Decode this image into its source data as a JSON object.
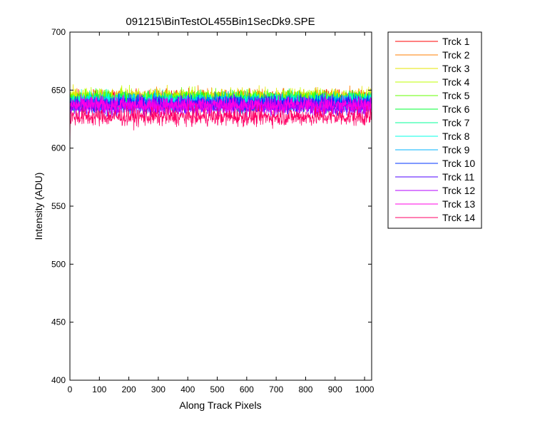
{
  "chart_data": {
    "type": "line",
    "title": "091215\\BinTestOL455Bin1SecDk9.SPE",
    "xlabel": "Along Track Pixels",
    "ylabel": "Intensity (ADU)",
    "xlim": [
      0,
      1024
    ],
    "ylim": [
      400,
      700
    ],
    "x_ticks": [
      "0",
      "100",
      "200",
      "300",
      "400",
      "500",
      "600",
      "700",
      "800",
      "900",
      "1000"
    ],
    "y_ticks": [
      "400",
      "450",
      "500",
      "550",
      "600",
      "650",
      "700"
    ],
    "grid": false,
    "legend_position": "outside-right",
    "x_points": 1024,
    "series": [
      {
        "name": "Trck 1",
        "color": "#ff0000",
        "mean": 642,
        "noise": 7,
        "start": 600
      },
      {
        "name": "Trck 2",
        "color": "#ff7f00",
        "mean": 643,
        "noise": 7,
        "start": 610
      },
      {
        "name": "Trck 3",
        "color": "#e6e600",
        "mean": 644,
        "noise": 7,
        "start": 612
      },
      {
        "name": "Trck 4",
        "color": "#bfff00",
        "mean": 643,
        "noise": 7,
        "start": 614
      },
      {
        "name": "Trck 5",
        "color": "#66ff00",
        "mean": 642,
        "noise": 7,
        "start": 616
      },
      {
        "name": "Trck 6",
        "color": "#00ff33",
        "mean": 641,
        "noise": 7,
        "start": 616
      },
      {
        "name": "Trck 7",
        "color": "#00ff99",
        "mean": 640,
        "noise": 7,
        "start": 618
      },
      {
        "name": "Trck 8",
        "color": "#00ffe6",
        "mean": 640,
        "noise": 7,
        "start": 618
      },
      {
        "name": "Trck 9",
        "color": "#00b3ff",
        "mean": 639,
        "noise": 7,
        "start": 620
      },
      {
        "name": "Trck 10",
        "color": "#0033ff",
        "mean": 638,
        "noise": 7,
        "start": 620
      },
      {
        "name": "Trck 11",
        "color": "#4d00ff",
        "mean": 637,
        "noise": 7,
        "start": 622
      },
      {
        "name": "Trck 12",
        "color": "#b300ff",
        "mean": 636,
        "noise": 7,
        "start": 622
      },
      {
        "name": "Trck 13",
        "color": "#ff00e6",
        "mean": 637,
        "noise": 7,
        "start": 624
      },
      {
        "name": "Trck 14",
        "color": "#ff0066",
        "mean": 627,
        "noise": 7,
        "start": 594
      }
    ]
  }
}
